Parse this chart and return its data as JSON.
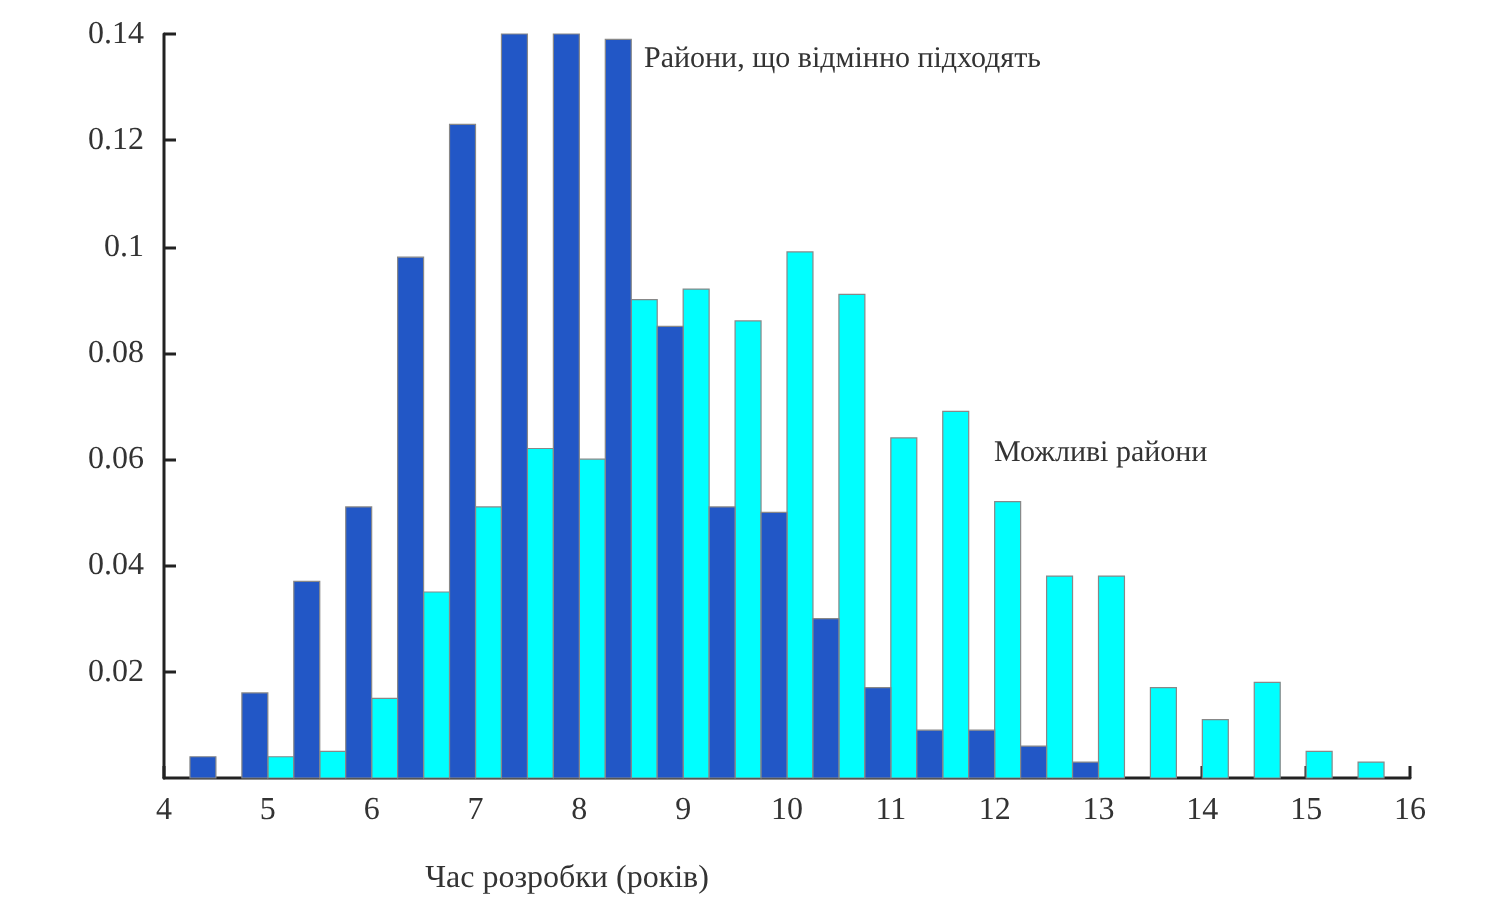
{
  "chart_data": {
    "type": "histogram",
    "xlabel": "Час розробки (років)",
    "bins": [
      4,
      4.5,
      5,
      5.5,
      6,
      6.5,
      7,
      7.5,
      8,
      8.5,
      9,
      9.5,
      10,
      10.5,
      11,
      11.5,
      12,
      12.5,
      13,
      13.5,
      14,
      14.5,
      15,
      15.5,
      16
    ],
    "series": [
      {
        "color": "#00ffff",
        "values": [
          0,
          0,
          0.004,
          0.005,
          0.015,
          0.035,
          0.051,
          0.062,
          0.06,
          0.09,
          0.092,
          0.086,
          0.099,
          0.091,
          0.064,
          0.069,
          0.052,
          0.038,
          0.038,
          0.017,
          0.011,
          0.018,
          0.005,
          0.003
        ]
      },
      {
        "color": "#2257c6",
        "values": [
          0.004,
          0.016,
          0.037,
          0.051,
          0.098,
          0.123,
          0.14,
          0.14,
          0.139,
          0.085,
          0.051,
          0.05,
          0.03,
          0.017,
          0.009,
          0.009,
          0.006,
          0.003,
          0,
          0,
          0,
          0,
          0,
          0
        ]
      }
    ],
    "annotations": [
      "Райони, що відмінно підходять",
      "Можливі райони"
    ],
    "xlim": [
      4,
      16
    ],
    "xticks": [
      4,
      5,
      6,
      7,
      8,
      9,
      10,
      11,
      12,
      13,
      14,
      15,
      16
    ],
    "ylim": [
      0,
      0.14
    ],
    "yticks": [
      0.02,
      0.04,
      0.06,
      0.08,
      0.1,
      0.12,
      0.14
    ],
    "grid": false
  }
}
